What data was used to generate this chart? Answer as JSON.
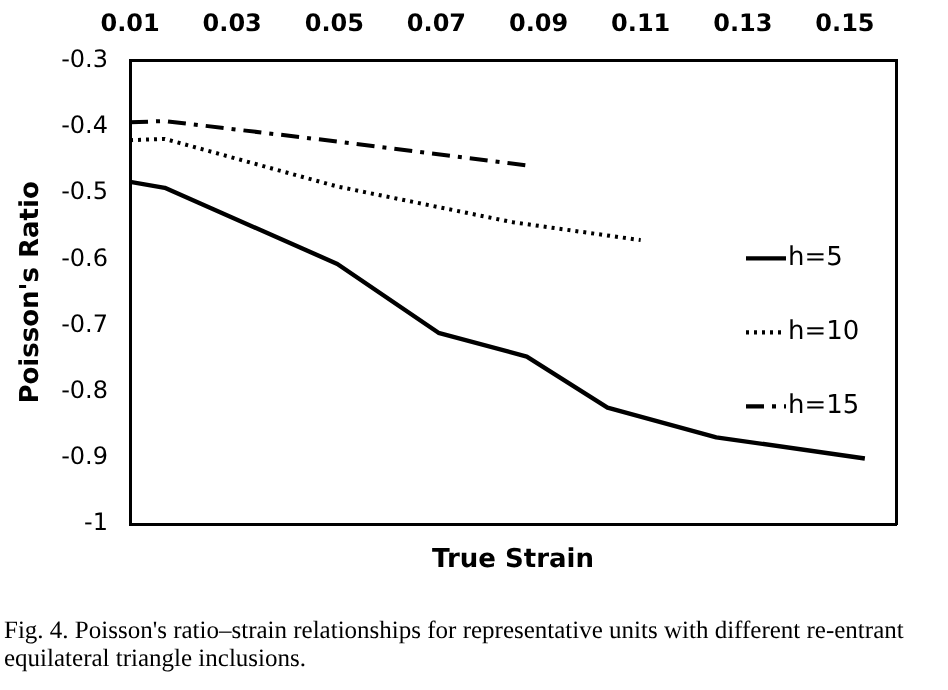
{
  "chart_data": {
    "type": "line",
    "xlabel": "True Strain",
    "ylabel": "Poisson's Ratio",
    "xlim": [
      0.01,
      0.16
    ],
    "xticks": [
      0.01,
      0.03,
      0.05,
      0.07,
      0.09,
      0.11,
      0.13,
      0.15
    ],
    "ylim": [
      -1,
      -0.3
    ],
    "yticks": [
      -1,
      -0.9,
      -0.8,
      -0.7,
      -0.6,
      -0.5,
      -0.4,
      -0.3
    ],
    "grid": false,
    "legend": "right",
    "marker": "none",
    "series": [
      {
        "name": "h=5",
        "color": "#000000",
        "line_style": "solid",
        "x": [
          0.01,
          0.0168,
          0.0506,
          0.0704,
          0.0877,
          0.1035,
          0.1248,
          0.1539
        ],
        "values": [
          -0.483,
          -0.492,
          -0.607,
          -0.711,
          -0.747,
          -0.824,
          -0.869,
          -0.901
        ]
      },
      {
        "name": "h=10",
        "color": "#000000",
        "line_style": "dotted",
        "x": [
          0.01,
          0.0168,
          0.0506,
          0.085,
          0.11
        ],
        "values": [
          -0.42,
          -0.418,
          -0.49,
          -0.544,
          -0.571
        ]
      },
      {
        "name": "h=15",
        "color": "#000000",
        "line_style": "dashed",
        "x": [
          0.01,
          0.0168,
          0.0506,
          0.0877
        ],
        "values": [
          -0.393,
          -0.391,
          -0.422,
          -0.458
        ]
      }
    ],
    "annotations": [
      "Fig. 4. Poisson's ratio–strain relationships for representative units with different re-entrant equilateral triangle inclusions."
    ]
  }
}
